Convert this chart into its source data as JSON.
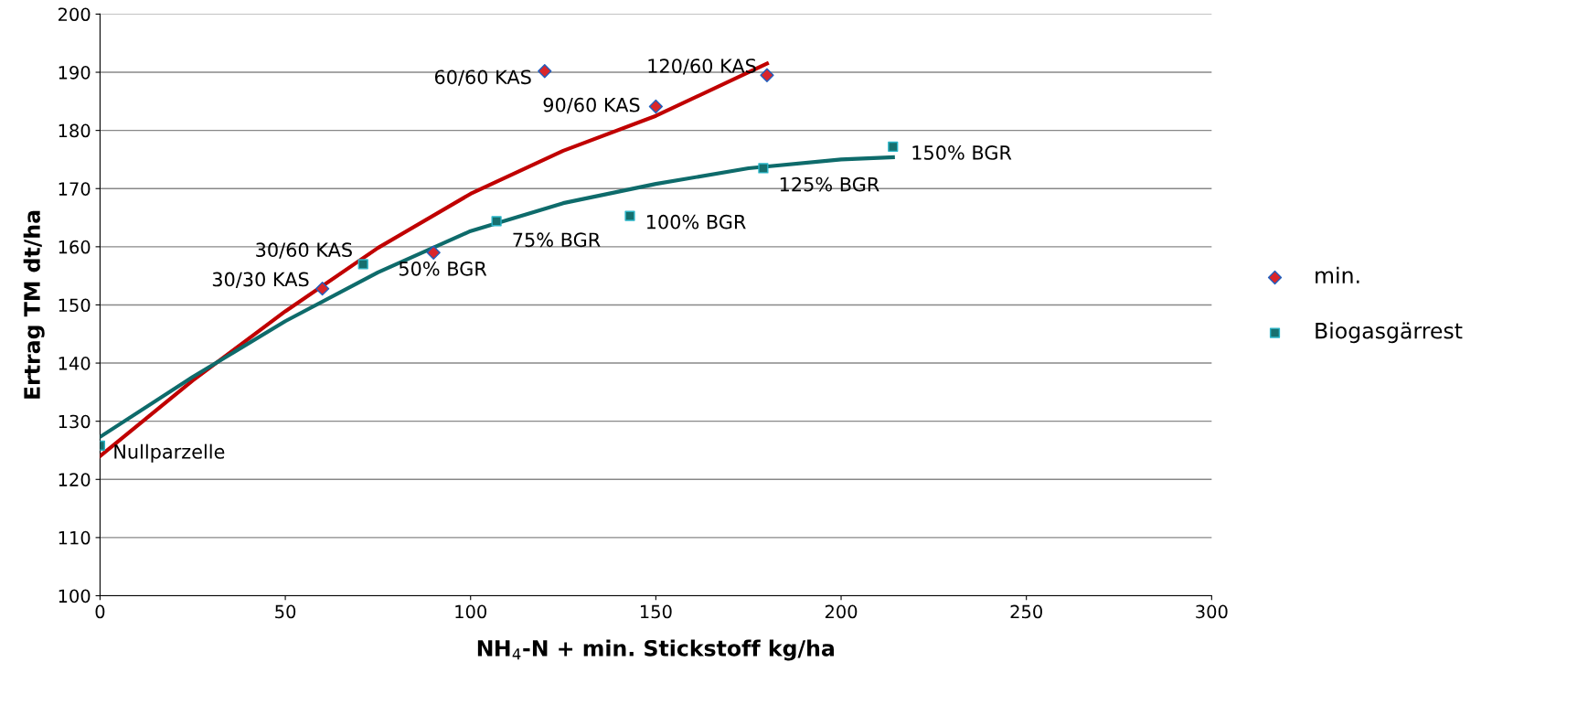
{
  "chart_data": {
    "type": "scatter",
    "xlabel": "NH$_{4}$-N + min. Stickstoff kg/ha",
    "ylabel": "Ertrag TM dt/ha",
    "xlim": [
      0,
      300
    ],
    "xticks": [
      0,
      50,
      100,
      150,
      200,
      250,
      300
    ],
    "ylim": [
      100,
      200
    ],
    "yticks": [
      100,
      110,
      120,
      130,
      140,
      150,
      160,
      170,
      180,
      190,
      200
    ],
    "grid": "y",
    "legend": "right",
    "series": [
      {
        "name": "min.",
        "marker": "diamond",
        "color": "#d9262b",
        "x": [
          60,
          90,
          120,
          150,
          180
        ],
        "values": [
          152.8,
          159.0,
          190.2,
          184.1,
          189.5
        ]
      },
      {
        "name": "Biogasgärrest",
        "marker": "square",
        "color": "#16706f",
        "x": [
          0,
          71,
          107,
          143,
          179,
          214
        ],
        "values": [
          125.8,
          157.0,
          164.4,
          165.3,
          173.5,
          177.2
        ]
      },
      {
        "type": "line",
        "marker": "none",
        "color": "#c00000",
        "x": [
          0,
          25,
          50,
          75,
          100,
          125,
          150,
          180
        ],
        "values": [
          124.0,
          137.0,
          148.9,
          159.8,
          169.1,
          176.5,
          182.5,
          191.5
        ]
      },
      {
        "type": "line",
        "marker": "none",
        "color": "#0e6b6b",
        "x": [
          0,
          25,
          50,
          75,
          100,
          125,
          150,
          175,
          200,
          214
        ],
        "values": [
          127.3,
          137.6,
          147.2,
          155.6,
          162.7,
          167.5,
          170.8,
          173.5,
          175.0,
          175.4
        ]
      }
    ],
    "annotations": [
      {
        "text": "Nullparzelle",
        "x": 0,
        "y": 125.8
      },
      {
        "text": "30/30 KAS",
        "x": 60,
        "y": 152.8
      },
      {
        "text": "30/60 KAS",
        "x": 71,
        "y": 157.0
      },
      {
        "text": "50% BGR",
        "x": 90,
        "y": 159.0
      },
      {
        "text": "75% BGR",
        "x": 107,
        "y": 164.4
      },
      {
        "text": "60/60 KAS",
        "x": 120,
        "y": 190.2
      },
      {
        "text": "100% BGR",
        "x": 143,
        "y": 165.3
      },
      {
        "text": "90/60 KAS",
        "x": 150,
        "y": 184.1
      },
      {
        "text": "120/60 KAS",
        "x": 180,
        "y": 189.5
      },
      {
        "text": "125% BGR",
        "x": 179,
        "y": 173.5
      },
      {
        "text": "150% BGR",
        "x": 214,
        "y": 177.2
      }
    ]
  }
}
